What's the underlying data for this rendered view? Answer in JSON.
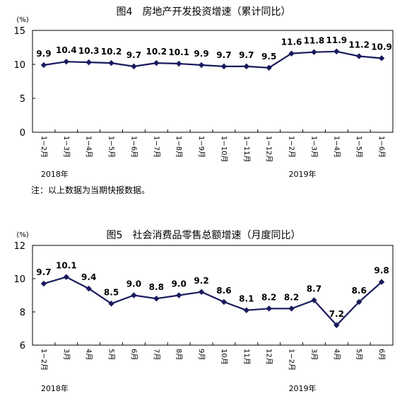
{
  "chart_data": [
    {
      "type": "line",
      "title": "图4　房地产开发投资增速（累计同比）",
      "unit_label": "(%)",
      "ylim": [
        0,
        15
      ],
      "yticks": [
        0,
        5,
        10,
        15
      ],
      "categories": [
        "1−2月",
        "1−3月",
        "1−4月",
        "1−5月",
        "1−6月",
        "1−7月",
        "1−8月",
        "1−9月",
        "1−10月",
        "1−11月",
        "1−12月",
        "1−2月",
        "1−3月",
        "1−4月",
        "1−5月",
        "1−6月"
      ],
      "values": [
        9.9,
        10.4,
        10.3,
        10.2,
        9.7,
        10.2,
        10.1,
        9.9,
        9.7,
        9.7,
        9.5,
        11.6,
        11.8,
        11.9,
        11.2,
        10.9
      ],
      "value_labels": [
        "9.9",
        "10.4",
        "10.3",
        "10.2",
        "9.7",
        "10.2",
        "10.1",
        "9.9",
        "9.7",
        "9.7",
        "9.5",
        "11.6",
        "11.8",
        "11.9",
        "11.2",
        "10.9"
      ],
      "year_labels": [
        {
          "text": "2018年",
          "index": 0
        },
        {
          "text": "2019年",
          "index": 11
        }
      ],
      "note": "注：以上数据为当期快报数据。",
      "color": "#1a1a5e",
      "grid": false
    },
    {
      "type": "line",
      "title": "图5　社会消费品零售总额增速（月度同比）",
      "unit_label": "(%)",
      "ylim": [
        6,
        12
      ],
      "yticks": [
        6,
        8,
        10,
        12
      ],
      "categories": [
        "1−2月",
        "3月",
        "4月",
        "5月",
        "6月",
        "7月",
        "8月",
        "9月",
        "10月",
        "11月",
        "12月",
        "1−2月",
        "3月",
        "4月",
        "5月",
        "6月"
      ],
      "values": [
        9.7,
        10.1,
        9.4,
        8.5,
        9.0,
        8.8,
        9.0,
        9.2,
        8.6,
        8.1,
        8.2,
        8.2,
        8.7,
        7.2,
        8.6,
        9.8
      ],
      "value_labels": [
        "9.7",
        "10.1",
        "9.4",
        "8.5",
        "9.0",
        "8.8",
        "9.0",
        "9.2",
        "8.6",
        "8.1",
        "8.2",
        "8.2",
        "8.7",
        "7.2",
        "8.6",
        "9.8"
      ],
      "year_labels": [
        {
          "text": "2018年",
          "index": 0
        },
        {
          "text": "2019年",
          "index": 11
        }
      ],
      "color": "#1a1a5e",
      "grid": false
    }
  ]
}
